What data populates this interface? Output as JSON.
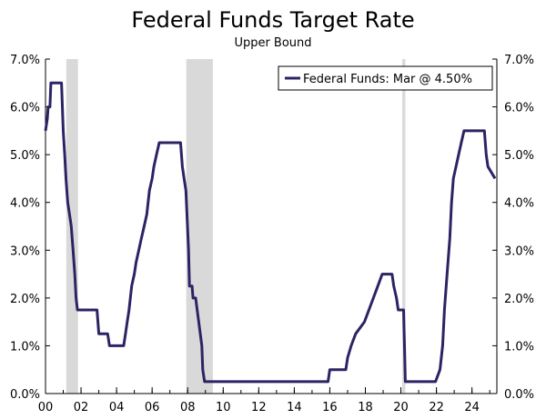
{
  "chart_data": {
    "type": "line",
    "title": "Federal Funds Target Rate",
    "subtitle": "Upper Bound",
    "xlabel": "",
    "ylabel": "",
    "xlim": [
      2000.0,
      2025.4
    ],
    "ylim": [
      0,
      7
    ],
    "y_ticks": [
      "0.0%",
      "1.0%",
      "2.0%",
      "3.0%",
      "4.0%",
      "5.0%",
      "6.0%",
      "7.0%"
    ],
    "x_ticks": [
      {
        "value": 2000,
        "label": "00"
      },
      {
        "value": 2002,
        "label": "02"
      },
      {
        "value": 2004,
        "label": "04"
      },
      {
        "value": 2006,
        "label": "06"
      },
      {
        "value": 2008,
        "label": "08"
      },
      {
        "value": 2010,
        "label": "10"
      },
      {
        "value": 2012,
        "label": "12"
      },
      {
        "value": 2014,
        "label": "14"
      },
      {
        "value": 2016,
        "label": "16"
      },
      {
        "value": 2018,
        "label": "18"
      },
      {
        "value": 2020,
        "label": "20"
      },
      {
        "value": 2022,
        "label": "22"
      },
      {
        "value": 2024,
        "label": "24"
      }
    ],
    "recessions": [
      [
        2001.17,
        2001.83
      ],
      [
        2007.92,
        2009.42
      ],
      [
        2020.08,
        2020.25
      ]
    ],
    "legend_position": "top-right",
    "grid": false,
    "colors": {
      "line": "#2b2464",
      "recession": "#d9d9d9",
      "axis": "#000000"
    },
    "series": [
      {
        "name": "Federal Funds: Mar @ 4.50%",
        "x": [
          2000.0,
          2000.1,
          2000.15,
          2000.25,
          2000.3,
          2000.4,
          2000.9,
          2001.0,
          2001.08,
          2001.15,
          2001.25,
          2001.35,
          2001.45,
          2001.55,
          2001.65,
          2001.72,
          2001.8,
          2001.9,
          2002.0,
          2002.9,
          2003.0,
          2003.5,
          2003.6,
          2004.4,
          2004.5,
          2004.6,
          2004.7,
          2004.85,
          2005.0,
          2005.1,
          2005.25,
          2005.4,
          2005.55,
          2005.7,
          2005.85,
          2006.0,
          2006.1,
          2006.25,
          2006.4,
          2006.55,
          2007.6,
          2007.7,
          2007.8,
          2007.9,
          2008.05,
          2008.1,
          2008.25,
          2008.3,
          2008.45,
          2008.8,
          2008.85,
          2008.95,
          2009.0,
          2015.9,
          2016.0,
          2016.9,
          2017.0,
          2017.2,
          2017.45,
          2017.95,
          2018.2,
          2018.45,
          2018.7,
          2018.95,
          2019.5,
          2019.6,
          2019.75,
          2019.85,
          2020.15,
          2020.2,
          2020.25,
          2021.95,
          2022.2,
          2022.35,
          2022.45,
          2022.6,
          2022.75,
          2022.85,
          2022.95,
          2023.1,
          2023.25,
          2023.4,
          2023.55,
          2024.7,
          2024.8,
          2024.9,
          2025.3
        ],
        "values": [
          5.5,
          5.75,
          6.0,
          6.0,
          6.5,
          6.5,
          6.5,
          5.5,
          5.0,
          4.5,
          4.0,
          3.75,
          3.5,
          3.0,
          2.5,
          2.0,
          1.75,
          1.75,
          1.75,
          1.75,
          1.25,
          1.25,
          1.0,
          1.0,
          1.25,
          1.5,
          1.75,
          2.25,
          2.5,
          2.75,
          3.0,
          3.25,
          3.5,
          3.75,
          4.25,
          4.5,
          4.75,
          5.0,
          5.25,
          5.25,
          5.25,
          4.75,
          4.5,
          4.25,
          3.0,
          2.25,
          2.25,
          2.0,
          2.0,
          1.0,
          0.5,
          0.25,
          0.25,
          0.25,
          0.5,
          0.5,
          0.75,
          1.0,
          1.25,
          1.5,
          1.75,
          2.0,
          2.25,
          2.5,
          2.5,
          2.25,
          2.0,
          1.75,
          1.75,
          1.0,
          0.25,
          0.25,
          0.5,
          1.0,
          1.75,
          2.5,
          3.25,
          4.0,
          4.5,
          4.75,
          5.0,
          5.25,
          5.5,
          5.5,
          5.0,
          4.75,
          4.5
        ]
      }
    ]
  }
}
